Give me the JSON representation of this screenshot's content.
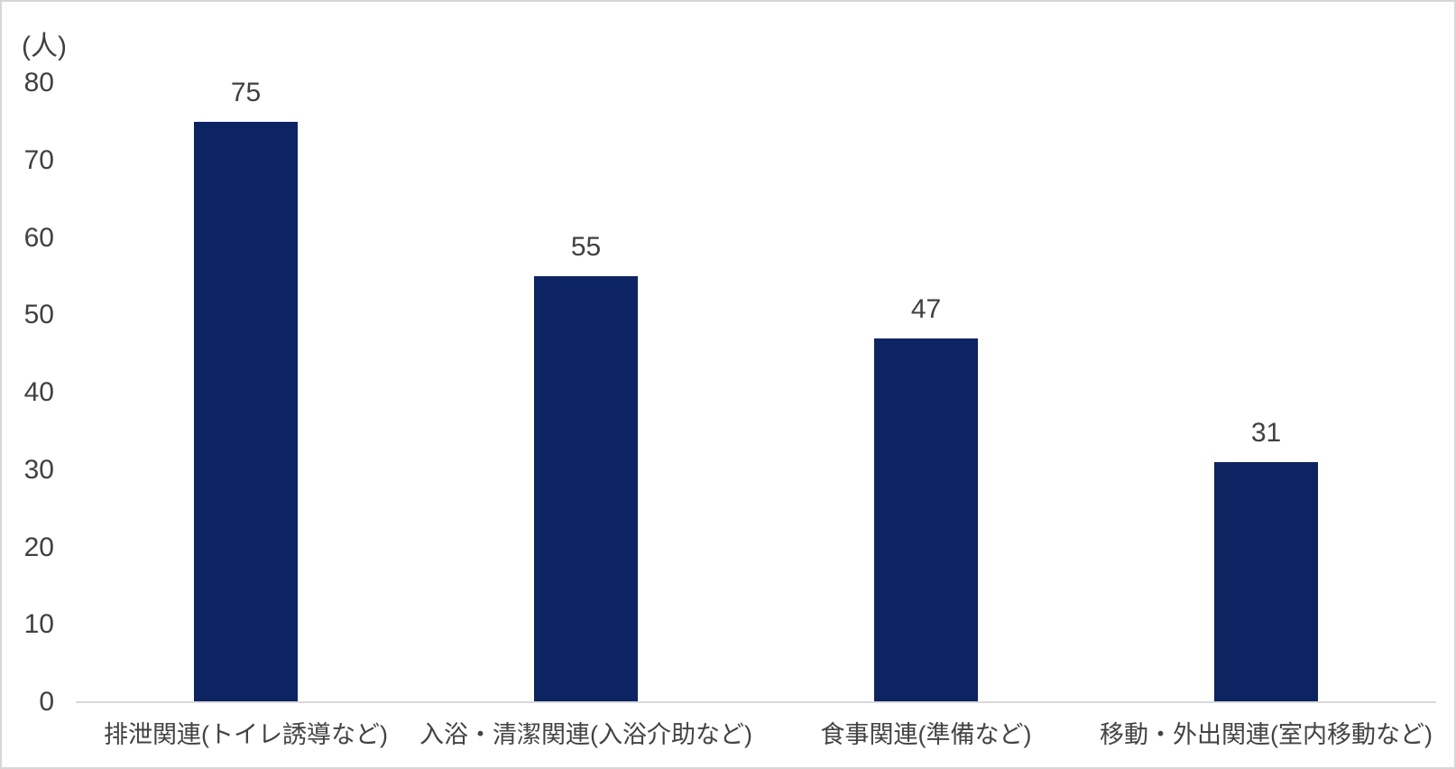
{
  "chart_data": {
    "type": "bar",
    "unit_label": "(人)",
    "categories": [
      "排泄関連(トイレ誘導など)",
      "入浴・清潔関連(入浴介助など)",
      "食事関連(準備など)",
      "移動・外出関連(室内移動など)"
    ],
    "values": [
      75,
      55,
      47,
      31
    ],
    "value_labels": [
      "75",
      "55",
      "47",
      "31"
    ],
    "yticks": [
      0,
      10,
      20,
      30,
      40,
      50,
      60,
      70,
      80
    ],
    "ylim": [
      0,
      80
    ],
    "grid": false,
    "legend": false,
    "bar_color": "#0d2463",
    "axis_line_color": "#d9d9d9",
    "label_color": "#404040",
    "border_color": "#d6d6d6",
    "background_color": "#ffffff"
  }
}
